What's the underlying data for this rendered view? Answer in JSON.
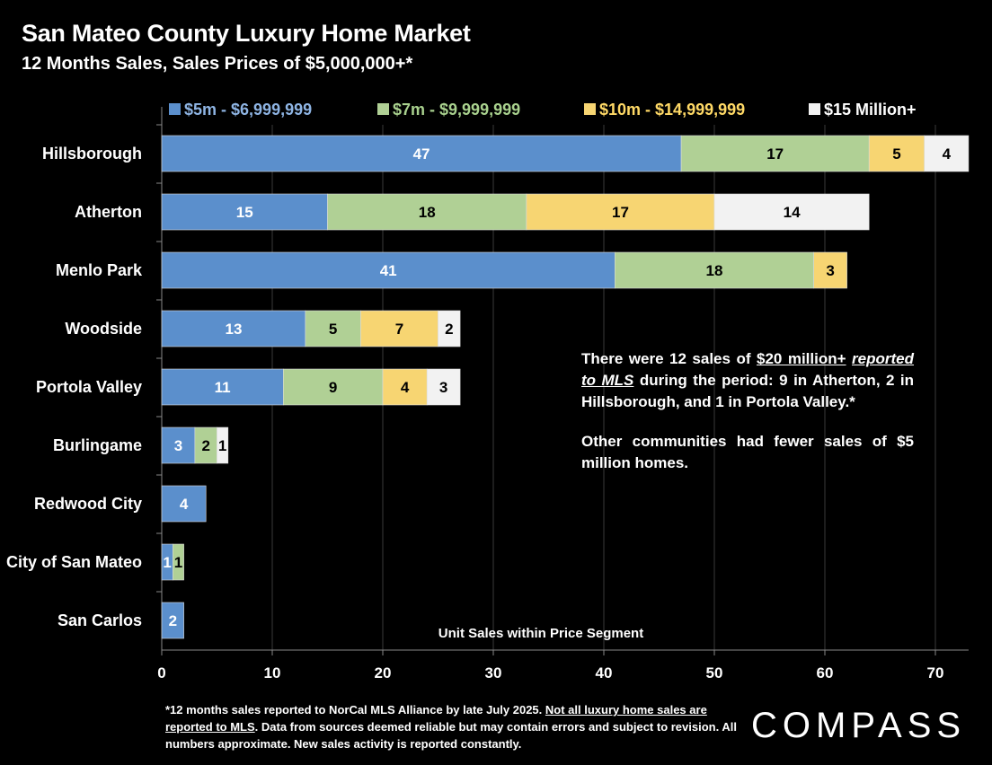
{
  "title": "San Mateo County Luxury Home Market",
  "subtitle": "12 Months Sales, Sales Prices of $5,000,000+*",
  "chart_data": {
    "type": "bar",
    "orientation": "horizontal",
    "stacked": true,
    "categories": [
      "Hillsborough",
      "Atherton",
      "Menlo Park",
      "Woodside",
      "Portola Valley",
      "Burlingame",
      "Redwood City",
      "City of San Mateo",
      "San Carlos"
    ],
    "series": [
      {
        "name": "$5m - $6,999,999",
        "color": "#5b8fcc",
        "label_color": "#ffffff",
        "legend_color": "#8eb4e3",
        "values": [
          47,
          15,
          41,
          13,
          11,
          3,
          4,
          1,
          2
        ]
      },
      {
        "name": "$7m - $9,999,999",
        "color": "#b0d095",
        "label_color": "#000000",
        "legend_color": "#a9d18e",
        "values": [
          17,
          18,
          18,
          5,
          9,
          2,
          0,
          1,
          0
        ]
      },
      {
        "name": "$10m - $14,999,999",
        "color": "#f7d572",
        "label_color": "#000000",
        "legend_color": "#ffd966",
        "values": [
          5,
          17,
          3,
          7,
          4,
          0,
          0,
          0,
          0
        ]
      },
      {
        "name": "$15 Million+",
        "color": "#f2f2f2",
        "label_color": "#000000",
        "legend_color": "#ffffff",
        "values": [
          4,
          14,
          0,
          2,
          3,
          1,
          0,
          0,
          0
        ]
      }
    ],
    "xlabel": "Unit Sales within Price Segment",
    "xlim": [
      0,
      73
    ],
    "xticks": [
      0,
      10,
      20,
      30,
      40,
      50,
      60,
      70
    ],
    "grid": true,
    "legend": "top"
  },
  "note": {
    "p1_a": "There were 12 sales of ",
    "p1_u": "$20 million+",
    "p1_i": "reported to MLS",
    "p1_b": " during the period: 9 in Atherton, 2 in Hillsborough, and 1 in Portola Valley.*",
    "p2": "Other communities had fewer sales of $5 million homes."
  },
  "footnote": {
    "a": "*12 months sales reported to NorCal MLS Alliance by late July 2025. ",
    "u": "Not all luxury home sales are reported to MLS",
    "b": ". Data from sources deemed reliable but may contain errors and subject to revision. All numbers approximate. New sales activity is reported constantly."
  },
  "logo": "COMPASS"
}
